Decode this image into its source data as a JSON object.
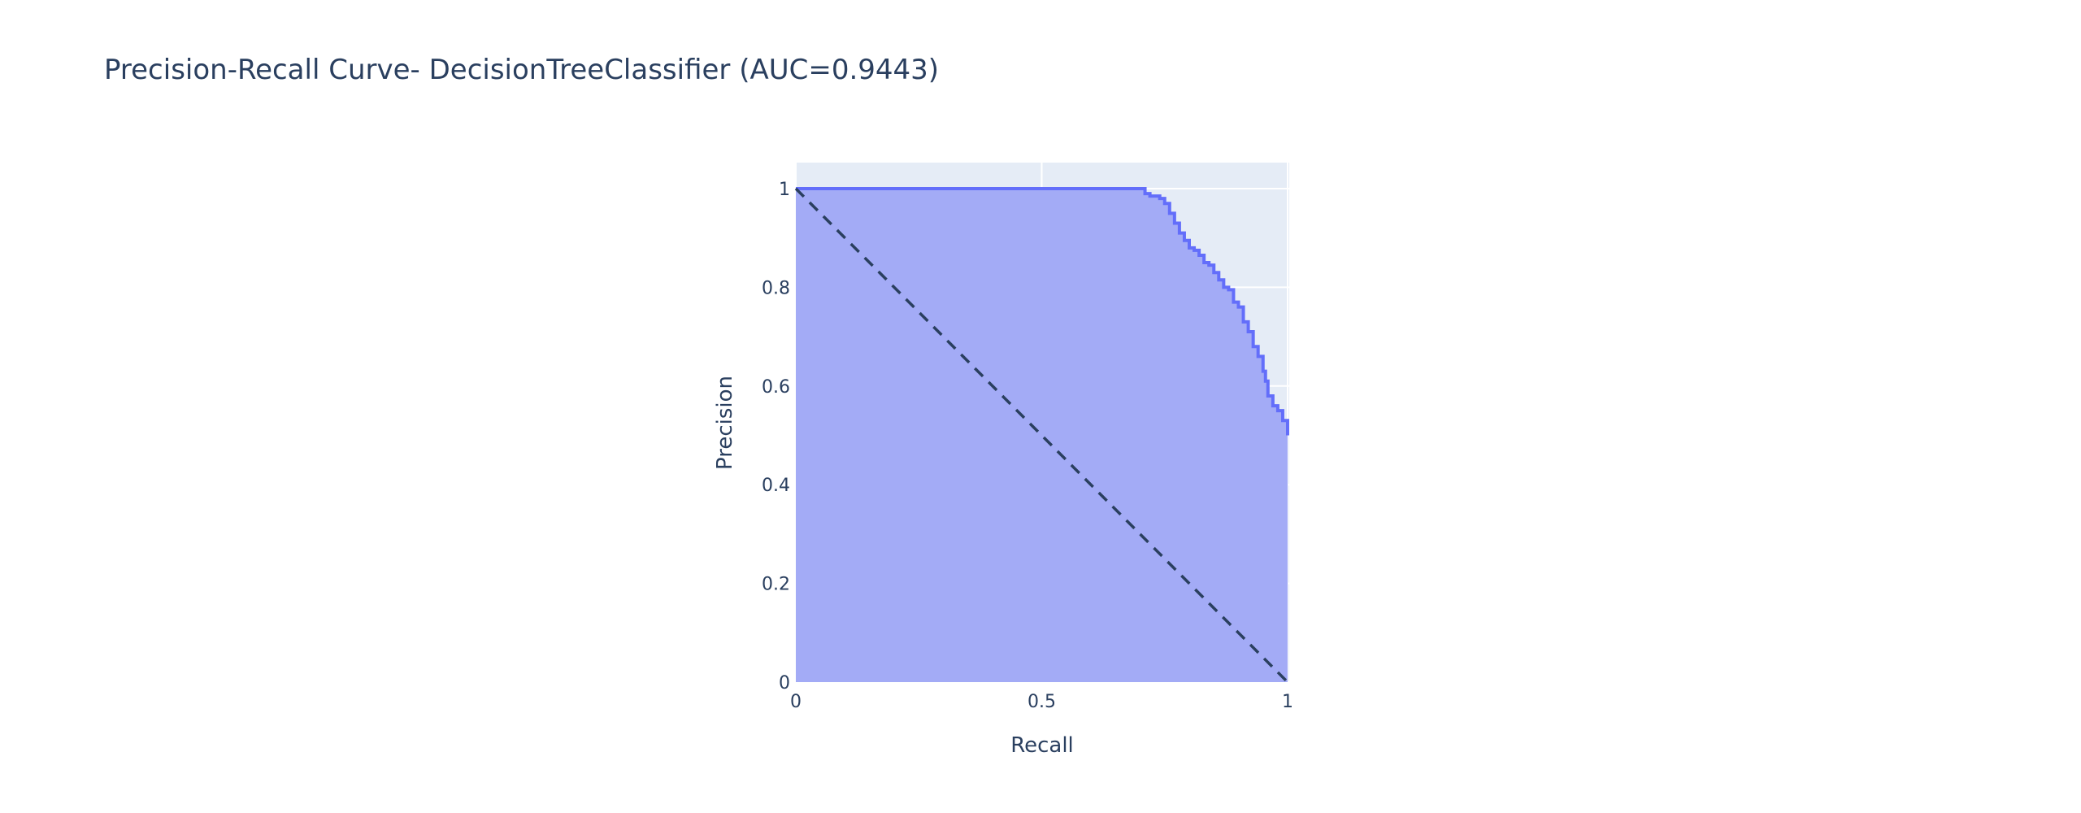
{
  "chart_data": {
    "type": "area",
    "title": "Precision-Recall Curve- DecisionTreeClassifier (AUC=0.9443)",
    "xlabel": "Recall",
    "ylabel": "Precision",
    "xlim": [
      0,
      1
    ],
    "ylim": [
      0,
      1
    ],
    "x_ticks": [
      "0",
      "0.5",
      "1"
    ],
    "y_ticks": [
      "0",
      "0.2",
      "0.4",
      "0.6",
      "0.8",
      "1"
    ],
    "grid": true,
    "legend": "none",
    "series": [
      {
        "fill": "tozeroy",
        "x": [
          0,
          0.7,
          0.71,
          0.72,
          0.74,
          0.75,
          0.76,
          0.77,
          0.78,
          0.79,
          0.8,
          0.81,
          0.82,
          0.83,
          0.84,
          0.85,
          0.86,
          0.87,
          0.88,
          0.89,
          0.9,
          0.91,
          0.92,
          0.93,
          0.94,
          0.95,
          0.955,
          0.96,
          0.97,
          0.98,
          0.99,
          1.0
        ],
        "y": [
          1,
          1,
          0.99,
          0.985,
          0.98,
          0.97,
          0.95,
          0.93,
          0.91,
          0.895,
          0.88,
          0.875,
          0.865,
          0.85,
          0.845,
          0.83,
          0.815,
          0.8,
          0.795,
          0.77,
          0.76,
          0.73,
          0.71,
          0.68,
          0.66,
          0.63,
          0.61,
          0.58,
          0.56,
          0.55,
          0.53,
          0.5
        ]
      },
      {
        "style": "dashed",
        "x": [
          0,
          1
        ],
        "y": [
          1,
          0
        ]
      }
    ],
    "colors": {
      "plot_bg": "#e5ecf6",
      "grid": "#ffffff",
      "area_fill": "#a3abf6",
      "line": "#636efa",
      "diagonal": "#2a3f5f",
      "text": "#2a3f5f"
    }
  }
}
